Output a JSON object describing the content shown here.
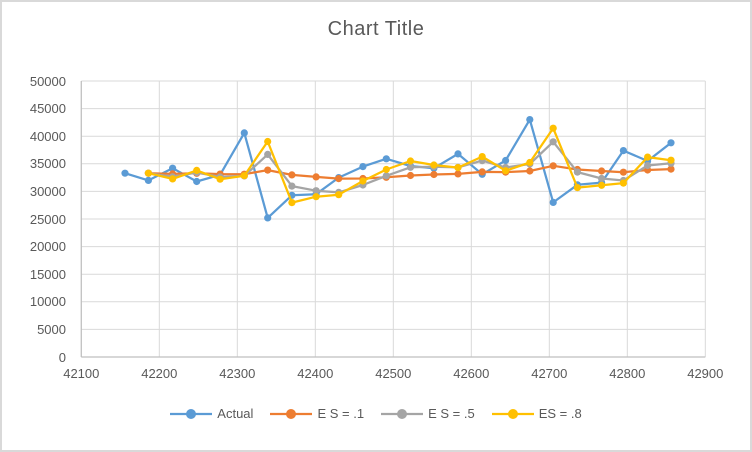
{
  "chart_data": {
    "type": "line",
    "title": "Chart Title",
    "xlabel": "",
    "ylabel": "",
    "xlim": [
      42100,
      42900
    ],
    "ylim": [
      0,
      50000
    ],
    "grid": true,
    "legend_position": "bottom",
    "x_ticks": [
      42100,
      42200,
      42300,
      42400,
      42500,
      42600,
      42700,
      42800,
      42900
    ],
    "y_ticks": [
      0,
      5000,
      10000,
      15000,
      20000,
      25000,
      30000,
      35000,
      40000,
      45000,
      50000
    ],
    "x": [
      42156,
      42186,
      42217,
      42248,
      42278,
      42309,
      42339,
      42370,
      42401,
      42430,
      42461,
      42491,
      42522,
      42552,
      42583,
      42614,
      42644,
      42675,
      42705,
      42736,
      42767,
      42795,
      42826,
      42856
    ],
    "series": [
      {
        "name": "Actual",
        "color": "#5B9BD5",
        "values": [
          33300,
          32000,
          34200,
          31800,
          33000,
          40600,
          25200,
          29300,
          29500,
          32500,
          34500,
          35900,
          34600,
          34200,
          36800,
          33100,
          35600,
          43000,
          28000,
          31200,
          31600,
          37400,
          35500,
          38800
        ]
      },
      {
        "name": "E S = .1",
        "color": "#ED7D31",
        "values": [
          null,
          33300,
          33170,
          33273,
          33126,
          33113,
          33862,
          32996,
          32626,
          32313,
          32332,
          32549,
          32884,
          33056,
          33170,
          33533,
          33490,
          33701,
          34631,
          33968,
          33691,
          33482,
          33874,
          34037
        ]
      },
      {
        "name": "E S =  .5",
        "color": "#A5A5A5",
        "values": [
          null,
          33300,
          32650,
          33425,
          32613,
          32806,
          36703,
          30952,
          30126,
          29813,
          31156,
          32828,
          34364,
          34482,
          34341,
          35571,
          34335,
          34968,
          38984,
          33492,
          32346,
          31973,
          34687,
          35093
        ]
      },
      {
        "name": "ES = .8",
        "color": "#FFC000",
        "values": [
          null,
          33300,
          32260,
          33812,
          32202,
          32840,
          39048,
          27970,
          29034,
          29407,
          31881,
          33976,
          35515,
          34783,
          34317,
          36303,
          33741,
          35228,
          41446,
          30689,
          31098,
          31500,
          36220,
          35644
        ]
      }
    ],
    "gridline_color": "#D9D9D9",
    "axis_line_color": "#BFBFBF",
    "text_color": "#595959"
  }
}
